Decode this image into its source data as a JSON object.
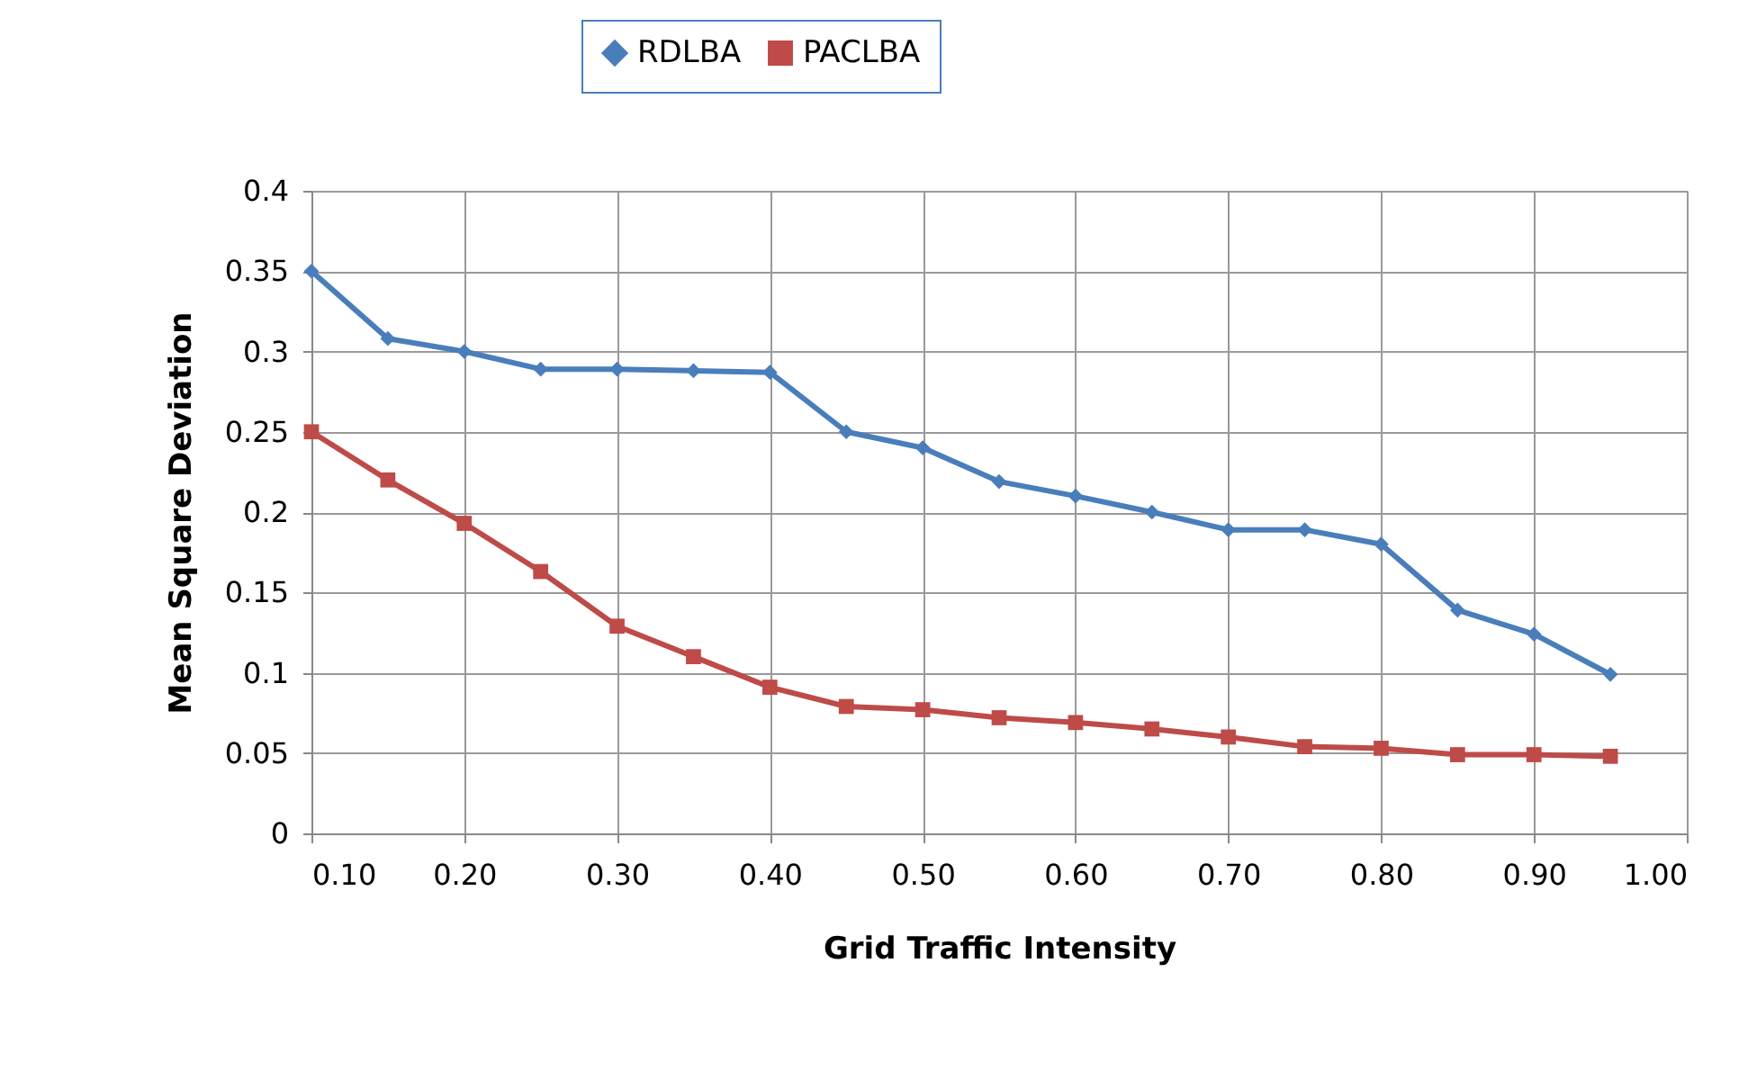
{
  "chart_data": {
    "type": "line",
    "xlabel": "Grid Traffic Intensity",
    "ylabel": "Mean Square Deviation",
    "x": [
      0.1,
      0.15,
      0.2,
      0.25,
      0.3,
      0.35,
      0.4,
      0.45,
      0.5,
      0.55,
      0.6,
      0.65,
      0.7,
      0.75,
      0.8,
      0.85,
      0.9,
      0.95
    ],
    "series": [
      {
        "name": "RDLBA",
        "color": "#4a7ebb",
        "marker": "diamond",
        "values": [
          0.35,
          0.308,
          0.3,
          0.289,
          0.289,
          0.288,
          0.287,
          0.25,
          0.24,
          0.219,
          0.21,
          0.2,
          0.189,
          0.189,
          0.18,
          0.139,
          0.124,
          0.099
        ]
      },
      {
        "name": "PACLBA",
        "color": "#be4b48",
        "marker": "square",
        "values": [
          0.25,
          0.22,
          0.193,
          0.163,
          0.129,
          0.11,
          0.091,
          0.079,
          0.077,
          0.072,
          0.069,
          0.065,
          0.06,
          0.054,
          0.053,
          0.049,
          0.049,
          0.048
        ]
      }
    ],
    "xlim": [
      0.1,
      1.0
    ],
    "xticks": [
      {
        "value": 0.1,
        "label": "0.10"
      },
      {
        "value": 0.2,
        "label": "0.20"
      },
      {
        "value": 0.3,
        "label": "0.30"
      },
      {
        "value": 0.4,
        "label": "0.40"
      },
      {
        "value": 0.5,
        "label": "0.50"
      },
      {
        "value": 0.6,
        "label": "0.60"
      },
      {
        "value": 0.7,
        "label": "0.70"
      },
      {
        "value": 0.8,
        "label": "0.80"
      },
      {
        "value": 0.9,
        "label": "0.90"
      },
      {
        "value": 1.0,
        "label": "1.00"
      }
    ],
    "ylim": [
      0,
      0.4
    ],
    "yticks": [
      0,
      0.05,
      0.1,
      0.15,
      0.2,
      0.25,
      0.3,
      0.35,
      0.4
    ],
    "grid": true,
    "legend": "top",
    "line_style": "solid"
  }
}
